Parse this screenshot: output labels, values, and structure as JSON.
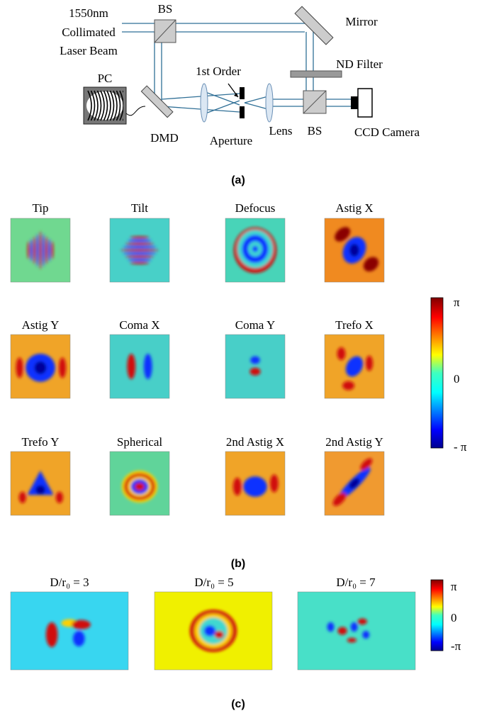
{
  "diagram": {
    "labels": [
      "1550nm",
      "Collimated",
      "Laser Beam",
      "BS",
      "Mirror",
      "ND Filter",
      "PC",
      "1st Order",
      "DMD",
      "Aperture",
      "Lens",
      "BS",
      "CCD Camera"
    ],
    "caption": "(a)"
  },
  "zernike": {
    "titles": [
      "Tip",
      "Tilt",
      "Defocus",
      "Astig X",
      "Astig Y",
      "Coma X",
      "Coma Y",
      "Trefo X",
      "Trefo Y",
      "Spherical",
      "2nd Astig X",
      "2nd Astig Y"
    ],
    "colorbar_labels": [
      "π",
      "0",
      "- π"
    ],
    "caption": "(b)"
  },
  "turbulence": {
    "titles": [
      "D/r₀ = 3",
      "D/r₀ = 5",
      "D/r₀ = 7"
    ],
    "colorbar_labels": [
      "π",
      "0",
      "-π"
    ],
    "caption": "(c)"
  }
}
